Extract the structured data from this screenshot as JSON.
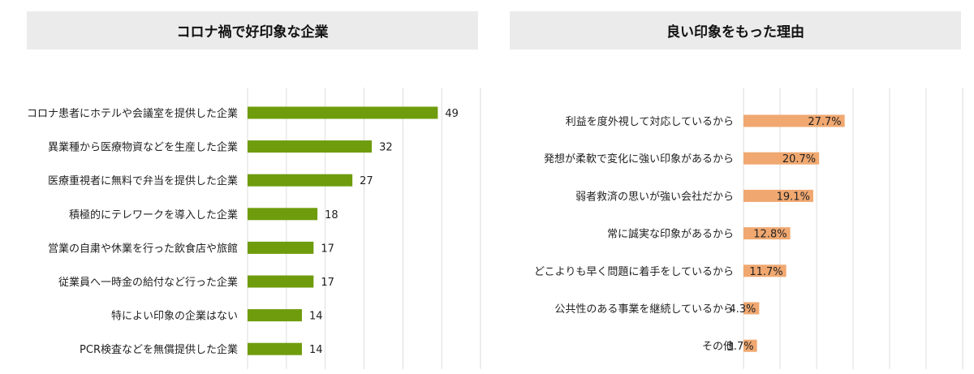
{
  "chart_data": [
    {
      "type": "bar",
      "orientation": "horizontal",
      "title": "コロナ禍で好印象な企業",
      "categories": [
        "コロナ患者にホテルや会議室を提供した企業",
        "異業種から医療物資などを生産した企業",
        "医療重視者に無料で弁当を提供した企業",
        "積極的にテレワークを導入した企業",
        "営業の自粛や休業を行った飲食店や旅館",
        "従業員へ一時金の給付など行った企業",
        "特によい印象の企業はない",
        "PCR検査などを無償提供した企業"
      ],
      "values": [
        49,
        32,
        27,
        18,
        17,
        17,
        14,
        14
      ],
      "value_labels": [
        "49",
        "32",
        "27",
        "18",
        "17",
        "17",
        "14",
        "14"
      ],
      "xlim": [
        0,
        60
      ],
      "grid": true,
      "color": "#6f9c0d"
    },
    {
      "type": "bar",
      "orientation": "horizontal",
      "title": "良い印象をもった理由",
      "categories": [
        "利益を度外視して対応しているから",
        "発想が柔軟で変化に強い印象があるから",
        "弱者救済の思いが強い会社だから",
        "常に誠実な印象があるから",
        "どこよりも早く問題に着手をしているから",
        "公共性のある事業を継続しているから",
        "その他"
      ],
      "values": [
        27.7,
        20.7,
        19.1,
        12.8,
        11.7,
        4.3,
        3.7
      ],
      "value_labels": [
        "27.7%",
        "20.7%",
        "19.1%",
        "12.8%",
        "11.7%",
        "4.3%",
        "3.7%"
      ],
      "xlim": [
        0,
        60
      ],
      "grid": true,
      "color": "#f0a870"
    }
  ]
}
